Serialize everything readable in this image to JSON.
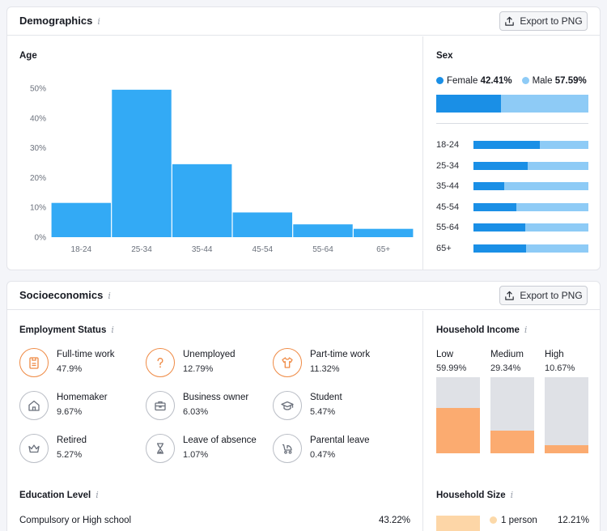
{
  "demographics": {
    "title": "Demographics",
    "info_glyph": "i",
    "export_label": "Export to PNG",
    "age": {
      "title": "Age",
      "chart_data": {
        "type": "bar",
        "categories": [
          "18-24",
          "25-34",
          "35-44",
          "45-54",
          "55-64",
          "65+"
        ],
        "values": [
          11.5,
          49.5,
          24.5,
          8.3,
          4.3,
          2.8
        ],
        "yticks": [
          "0%",
          "10%",
          "20%",
          "30%",
          "40%",
          "50%"
        ],
        "ylim": [
          0,
          50
        ],
        "color": "#33aaf5"
      }
    },
    "sex": {
      "title": "Sex",
      "female_label": "Female",
      "female_pct": "42.41%",
      "male_label": "Male",
      "male_pct": "57.59%",
      "female_share": 0.4241,
      "female_color": "#1a8fe6",
      "male_color": "#8ecbf6",
      "rows": [
        {
          "label": "18-24",
          "female_share": 0.58
        },
        {
          "label": "25-34",
          "female_share": 0.47
        },
        {
          "label": "35-44",
          "female_share": 0.27
        },
        {
          "label": "45-54",
          "female_share": 0.37
        },
        {
          "label": "55-64",
          "female_share": 0.45
        },
        {
          "label": "65+",
          "female_share": 0.46
        }
      ]
    }
  },
  "socioeconomics": {
    "title": "Socioeconomics",
    "info_glyph": "i",
    "export_label": "Export to PNG",
    "employment": {
      "title": "Employment Status",
      "items": [
        {
          "name": "Full-time work",
          "pct": "47.9%",
          "icon": "id-badge-icon",
          "highlight": true
        },
        {
          "name": "Unemployed",
          "pct": "12.79%",
          "icon": "question-icon",
          "highlight": true
        },
        {
          "name": "Part-time work",
          "pct": "11.32%",
          "icon": "shirt-icon",
          "highlight": true
        },
        {
          "name": "Homemaker",
          "pct": "9.67%",
          "icon": "home-icon",
          "highlight": false
        },
        {
          "name": "Business owner",
          "pct": "6.03%",
          "icon": "briefcase-icon",
          "highlight": false
        },
        {
          "name": "Student",
          "pct": "5.47%",
          "icon": "graduation-cap-icon",
          "highlight": false
        },
        {
          "name": "Retired",
          "pct": "5.27%",
          "icon": "crown-icon",
          "highlight": false
        },
        {
          "name": "Leave of absence",
          "pct": "1.07%",
          "icon": "hourglass-icon",
          "highlight": false
        },
        {
          "name": "Parental leave",
          "pct": "0.47%",
          "icon": "stroller-icon",
          "highlight": false
        }
      ]
    },
    "household_income": {
      "title": "Household Income",
      "items": [
        {
          "label": "Low",
          "pct": "59.99%",
          "share": 0.5999
        },
        {
          "label": "Medium",
          "pct": "29.34%",
          "share": 0.2934
        },
        {
          "label": "High",
          "pct": "10.67%",
          "share": 0.1067
        }
      ],
      "fill_color": "#fbab70",
      "track_color": "#dfe1e6"
    },
    "education": {
      "title": "Education Level",
      "rows": [
        {
          "label": "Compulsory or High school",
          "pct": "43.22%"
        }
      ]
    },
    "household_size": {
      "title": "Household Size",
      "rows": [
        {
          "label": "1 person",
          "pct": "12.21%"
        }
      ]
    }
  }
}
